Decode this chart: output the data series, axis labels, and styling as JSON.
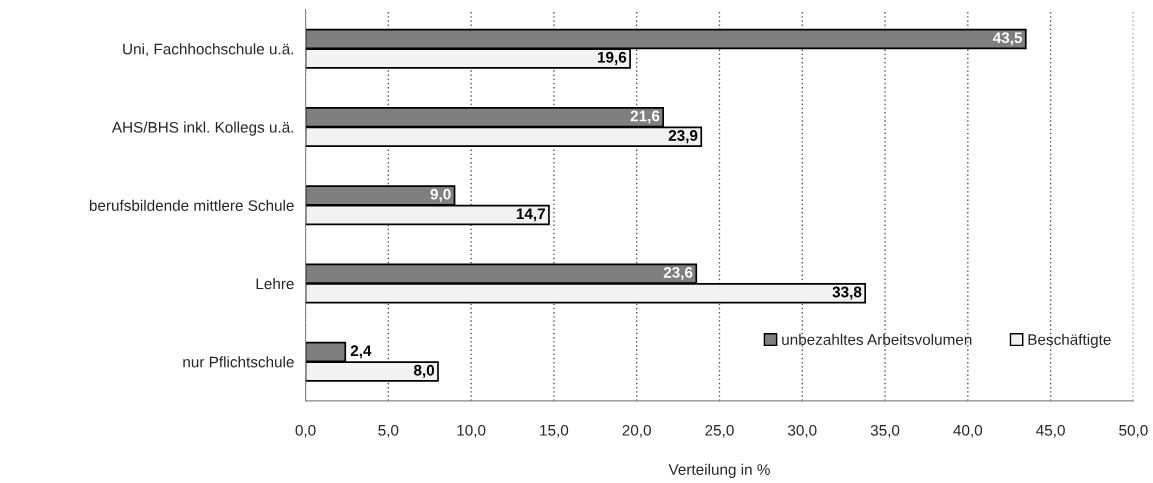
{
  "chart_data": {
    "type": "bar",
    "orientation": "horizontal",
    "xlabel": "Verteilung in %",
    "categories": [
      "Uni, Fachhochschule u.ä.",
      "AHS/BHS inkl. Kollegs u.ä.",
      "berufsbildende mittlere Schule",
      "Lehre",
      "nur Pflichtschule"
    ],
    "series": [
      {
        "name": "unbezahltes Arbeitsvolumen",
        "color": "#7f7f7f",
        "values": [
          43.5,
          21.6,
          9.0,
          23.6,
          2.4
        ],
        "value_labels": [
          "43,5",
          "21,6",
          "9,0",
          "23,6",
          "2,4"
        ]
      },
      {
        "name": "Beschäftigte",
        "color": "#f2f2f2",
        "values": [
          19.6,
          23.9,
          14.7,
          33.8,
          8.0
        ],
        "value_labels": [
          "19,6",
          "23,9",
          "14,7",
          "33,8",
          "8,0"
        ]
      }
    ],
    "xlim": [
      0,
      50
    ],
    "xticks": [
      {
        "value": 0,
        "label": "0,0"
      },
      {
        "value": 5,
        "label": "5,0"
      },
      {
        "value": 10,
        "label": "10,0"
      },
      {
        "value": 15,
        "label": "15,0"
      },
      {
        "value": 20,
        "label": "20,0"
      },
      {
        "value": 25,
        "label": "25,0"
      },
      {
        "value": 30,
        "label": "30,0"
      },
      {
        "value": 35,
        "label": "35,0"
      },
      {
        "value": 40,
        "label": "40,0"
      },
      {
        "value": 45,
        "label": "45,0"
      },
      {
        "value": 50,
        "label": "50,0"
      }
    ],
    "grid": "x",
    "legend": "bottom right"
  }
}
